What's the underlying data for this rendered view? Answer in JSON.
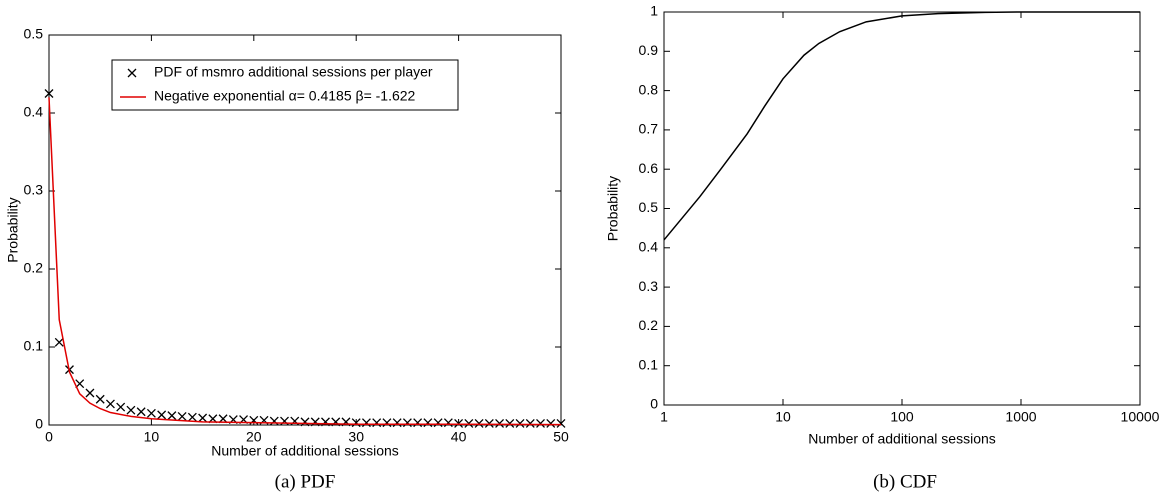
{
  "chart_data": [
    {
      "type": "scatter",
      "caption": "(a) PDF",
      "x_label": "Number of additional sessions",
      "y_label": "Probability",
      "xlim": [
        0,
        50
      ],
      "ylim": [
        0,
        0.5
      ],
      "xticks": [
        0,
        10,
        20,
        30,
        40,
        50
      ],
      "yticks": [
        0,
        0.1,
        0.2,
        0.3,
        0.4,
        0.5
      ],
      "legend": "top-center",
      "series": [
        {
          "name": "PDF of msmro additional sessions per player",
          "color": "#000000",
          "style": "marker",
          "x": [
            0,
            1,
            2,
            3,
            4,
            5,
            6,
            7,
            8,
            9,
            10,
            11,
            12,
            13,
            14,
            15,
            16,
            17,
            18,
            19,
            20,
            21,
            22,
            23,
            24,
            25,
            26,
            27,
            28,
            29,
            30,
            31,
            32,
            33,
            34,
            35,
            36,
            37,
            38,
            39,
            40,
            41,
            42,
            43,
            44,
            45,
            46,
            47,
            48,
            49,
            50
          ],
          "values": [
            0.425,
            0.106,
            0.071,
            0.053,
            0.041,
            0.033,
            0.027,
            0.023,
            0.019,
            0.017,
            0.015,
            0.013,
            0.012,
            0.011,
            0.01,
            0.009,
            0.008,
            0.008,
            0.007,
            0.007,
            0.006,
            0.006,
            0.005,
            0.005,
            0.005,
            0.004,
            0.004,
            0.004,
            0.004,
            0.004,
            0.003,
            0.003,
            0.003,
            0.003,
            0.003,
            0.003,
            0.003,
            0.003,
            0.003,
            0.003,
            0.002,
            0.002,
            0.002,
            0.002,
            0.002,
            0.002,
            0.002,
            0.002,
            0.002,
            0.002,
            0.002
          ]
        },
        {
          "name": "Negative exponential α= 0.4185  β= -1.622",
          "color": "#e00000",
          "style": "line",
          "x": [
            0,
            1,
            2,
            3,
            4,
            5,
            6,
            8,
            10,
            15,
            20,
            30,
            40,
            50
          ],
          "values": [
            0.42,
            0.135,
            0.068,
            0.04,
            0.028,
            0.021,
            0.016,
            0.011,
            0.008,
            0.004,
            0.003,
            0.001,
            0.001,
            0.0005
          ]
        }
      ]
    },
    {
      "type": "line",
      "caption": "(b) CDF",
      "x_label": "Number of additional sessions",
      "y_label": "Probability",
      "xscale": "log",
      "xlim": [
        1,
        10000
      ],
      "ylim": [
        0,
        1
      ],
      "xticks": [
        1,
        10,
        100,
        1000,
        10000
      ],
      "yticks": [
        0,
        0.1,
        0.2,
        0.3,
        0.4,
        0.5,
        0.6,
        0.7,
        0.8,
        0.9,
        1
      ],
      "series": [
        {
          "color": "#000000",
          "style": "line",
          "x": [
            1,
            2,
            3,
            5,
            7,
            10,
            15,
            20,
            30,
            50,
            100,
            200,
            500,
            1000,
            10000
          ],
          "values": [
            0.42,
            0.53,
            0.6,
            0.69,
            0.76,
            0.83,
            0.89,
            0.92,
            0.95,
            0.975,
            0.99,
            0.996,
            0.999,
            1,
            1
          ]
        }
      ]
    }
  ]
}
